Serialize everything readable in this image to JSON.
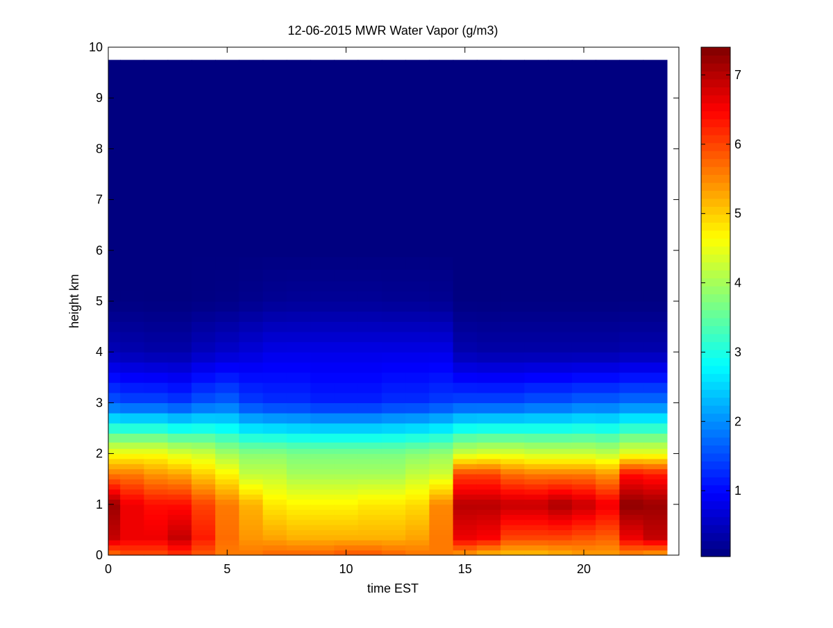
{
  "chart_data": {
    "type": "heatmap",
    "title": "12-06-2015 MWR Water Vapor (g/m3)",
    "xlabel": "time EST",
    "ylabel": "height km",
    "xlim": [
      0,
      24
    ],
    "ylim": [
      0,
      10
    ],
    "x_ticks": [
      "0",
      "5",
      "10",
      "15",
      "20"
    ],
    "y_ticks": [
      "0",
      "1",
      "2",
      "3",
      "4",
      "5",
      "6",
      "7",
      "8",
      "9",
      "10"
    ],
    "colorbar": {
      "range": [
        0.05,
        7.4
      ],
      "ticks": [
        "1",
        "2",
        "3",
        "4",
        "5",
        "6",
        "7"
      ],
      "colormap": "jet"
    },
    "time_hours": [
      0,
      1,
      2,
      3,
      4,
      5,
      6,
      7,
      8,
      9,
      10,
      11,
      12,
      13,
      14,
      15,
      16,
      17,
      18,
      19,
      20,
      21,
      22,
      23
    ],
    "height_km": [
      0.05,
      0.15,
      0.25,
      0.35,
      0.45,
      0.55,
      0.65,
      0.75,
      0.85,
      0.95,
      1.05,
      1.15,
      1.25,
      1.35,
      1.45,
      1.55,
      1.65,
      1.75,
      1.85,
      1.95,
      2.05,
      2.15,
      2.3,
      2.5,
      2.7,
      2.9,
      3.1,
      3.3,
      3.5,
      3.7,
      3.9,
      4.1,
      4.3,
      4.5,
      4.7,
      4.9,
      5.1,
      5.3,
      5.5,
      5.75,
      6.0,
      6.5,
      7.0,
      7.5,
      8.0,
      8.5,
      9.0,
      9.5
    ],
    "profiles": {
      "surface": [
        5.8,
        6.0,
        6.0,
        6.2,
        5.9,
        5.6,
        5.6,
        5.7,
        5.7,
        5.7,
        5.8,
        5.8,
        5.7,
        5.6,
        5.6,
        5.5,
        5.3,
        5.2,
        5.2,
        5.3,
        5.4,
        5.4,
        5.6,
        5.5
      ],
      "near_surface": [
        6.9,
        6.6,
        6.6,
        6.9,
        6.3,
        5.7,
        5.4,
        5.3,
        5.2,
        5.2,
        5.2,
        5.2,
        5.2,
        5.3,
        5.6,
        6.6,
        6.5,
        6.0,
        6.0,
        6.0,
        5.9,
        5.8,
        6.6,
        6.9
      ],
      "peak_1km": [
        7.2,
        6.6,
        6.4,
        6.4,
        6.0,
        5.6,
        5.2,
        4.8,
        4.7,
        4.7,
        4.7,
        4.8,
        4.8,
        4.9,
        5.5,
        7.0,
        7.0,
        6.9,
        6.9,
        7.1,
        6.9,
        6.6,
        7.3,
        7.2
      ],
      "value_1_6km": [
        5.6,
        5.6,
        5.4,
        5.3,
        5.0,
        4.7,
        4.2,
        4.2,
        4.0,
        4.0,
        4.0,
        4.0,
        4.0,
        4.2,
        4.3,
        6.0,
        6.0,
        5.7,
        5.6,
        5.6,
        5.6,
        5.4,
        6.4,
        6.3
      ],
      "value_2km": [
        4.6,
        4.6,
        4.6,
        4.4,
        4.3,
        4.0,
        3.8,
        3.8,
        3.7,
        3.7,
        3.7,
        3.7,
        3.7,
        3.8,
        3.9,
        4.3,
        4.4,
        4.4,
        4.3,
        4.3,
        4.3,
        4.2,
        4.5,
        4.5
      ],
      "value_3km": [
        1.6,
        1.5,
        1.5,
        1.4,
        1.6,
        1.7,
        1.4,
        1.3,
        1.3,
        1.2,
        1.2,
        1.2,
        1.3,
        1.3,
        1.4,
        1.5,
        1.5,
        1.5,
        1.6,
        1.6,
        1.7,
        1.7,
        1.8,
        1.8
      ],
      "value_4km": [
        0.45,
        0.4,
        0.35,
        0.35,
        0.5,
        0.6,
        0.7,
        0.8,
        0.8,
        0.8,
        0.8,
        0.8,
        0.8,
        0.8,
        0.8,
        0.4,
        0.35,
        0.35,
        0.35,
        0.35,
        0.35,
        0.35,
        0.4,
        0.4
      ],
      "value_5km": [
        0.06,
        0.06,
        0.05,
        0.05,
        0.08,
        0.1,
        0.15,
        0.2,
        0.22,
        0.22,
        0.22,
        0.22,
        0.2,
        0.2,
        0.18,
        0.06,
        0.06,
        0.06,
        0.06,
        0.06,
        0.06,
        0.06,
        0.06,
        0.06
      ],
      "upper": [
        0.05,
        0.05,
        0.05,
        0.05,
        0.05,
        0.05,
        0.05,
        0.05,
        0.05,
        0.05,
        0.05,
        0.05,
        0.05,
        0.05,
        0.05,
        0.05,
        0.05,
        0.05,
        0.05,
        0.05,
        0.05,
        0.05,
        0.05,
        0.05
      ]
    }
  }
}
